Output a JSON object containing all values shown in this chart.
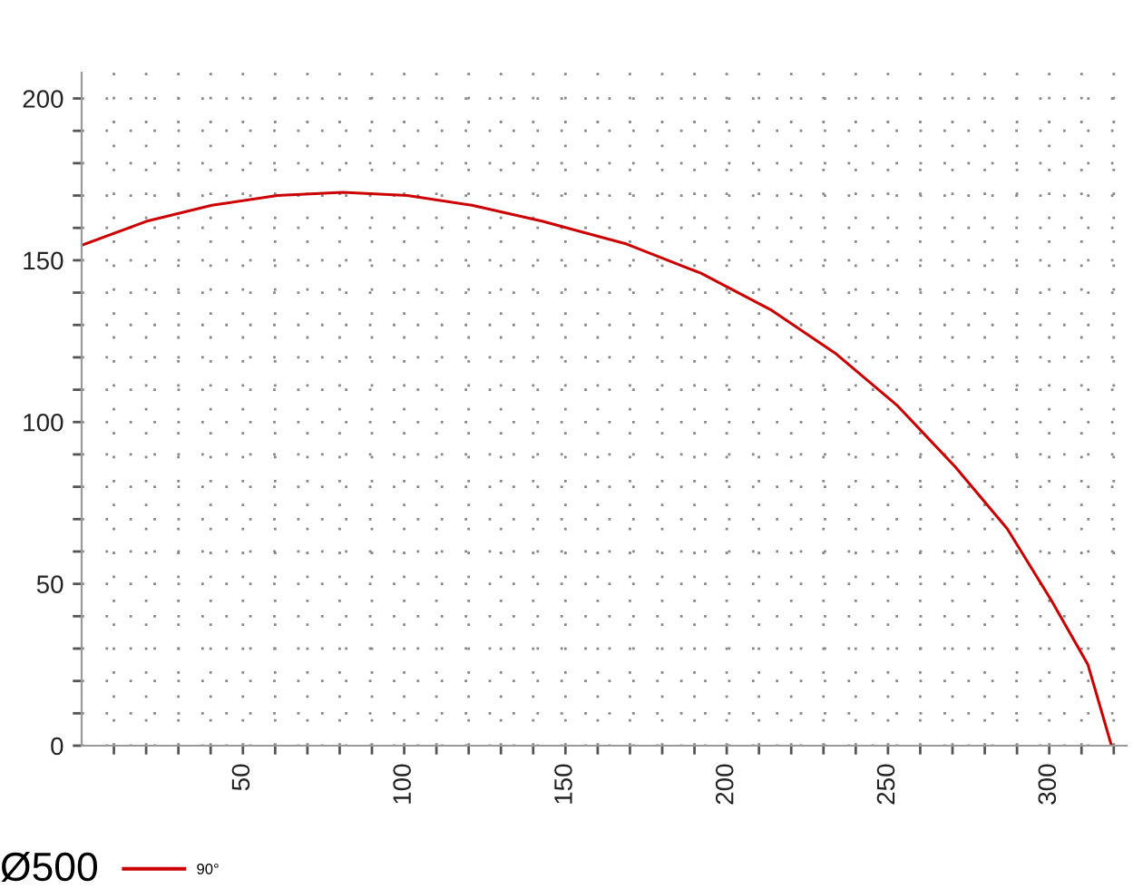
{
  "chart_data": {
    "type": "line",
    "legend_title": "Ø500",
    "x": [
      0,
      20,
      40.4,
      60.7,
      81,
      101,
      121,
      143,
      169,
      192,
      214,
      234,
      253,
      271,
      287,
      300.6,
      312,
      319.3
    ],
    "series": [
      {
        "name": "90°",
        "color": "#cc0000",
        "values": [
          154.6,
          162,
          167,
          170,
          171,
          170,
          167,
          162,
          155,
          146,
          134.5,
          121,
          105,
          86,
          67,
          45,
          25,
          0
        ]
      }
    ],
    "xlim": [
      0,
      324
    ],
    "ylim": [
      0,
      208
    ],
    "xticks": [
      {
        "value": 10,
        "label": null
      },
      {
        "value": 20,
        "label": null
      },
      {
        "value": 30,
        "label": null
      },
      {
        "value": 40,
        "label": null
      },
      50,
      {
        "value": 60,
        "label": null
      },
      {
        "value": 70,
        "label": null
      },
      {
        "value": 80,
        "label": null
      },
      {
        "value": 90,
        "label": null
      },
      100,
      {
        "value": 110,
        "label": null
      },
      {
        "value": 120,
        "label": null
      },
      {
        "value": 130,
        "label": null
      },
      {
        "value": 140,
        "label": null
      },
      150,
      {
        "value": 160,
        "label": null
      },
      {
        "value": 170,
        "label": null
      },
      {
        "value": 180,
        "label": null
      },
      {
        "value": 190,
        "label": null
      },
      200,
      {
        "value": 210,
        "label": null
      },
      {
        "value": 220,
        "label": null
      },
      {
        "value": 230,
        "label": null
      },
      {
        "value": 240,
        "label": null
      },
      250,
      {
        "value": 260,
        "label": null
      },
      {
        "value": 270,
        "label": null
      },
      {
        "value": 280,
        "label": null
      },
      {
        "value": 290,
        "label": null
      },
      300,
      {
        "value": 310,
        "label": null
      },
      {
        "value": 320,
        "label": null
      }
    ],
    "yticks": [
      0,
      {
        "value": 10,
        "label": null
      },
      {
        "value": 20,
        "label": null
      },
      {
        "value": 30,
        "label": null
      },
      {
        "value": 40,
        "label": null
      },
      50,
      {
        "value": 60,
        "label": null
      },
      {
        "value": 70,
        "label": null
      },
      {
        "value": 80,
        "label": null
      },
      {
        "value": 90,
        "label": null
      },
      100,
      {
        "value": 110,
        "label": null
      },
      {
        "value": 120,
        "label": null
      },
      {
        "value": 130,
        "label": null
      },
      {
        "value": 140,
        "label": null
      },
      150,
      {
        "value": 160,
        "label": null
      },
      {
        "value": 170,
        "label": null
      },
      {
        "value": 180,
        "label": null
      },
      {
        "value": 190,
        "label": null
      },
      200
    ],
    "grid": true,
    "legend": "bottom left",
    "marker": "none",
    "line_style": "solid"
  }
}
